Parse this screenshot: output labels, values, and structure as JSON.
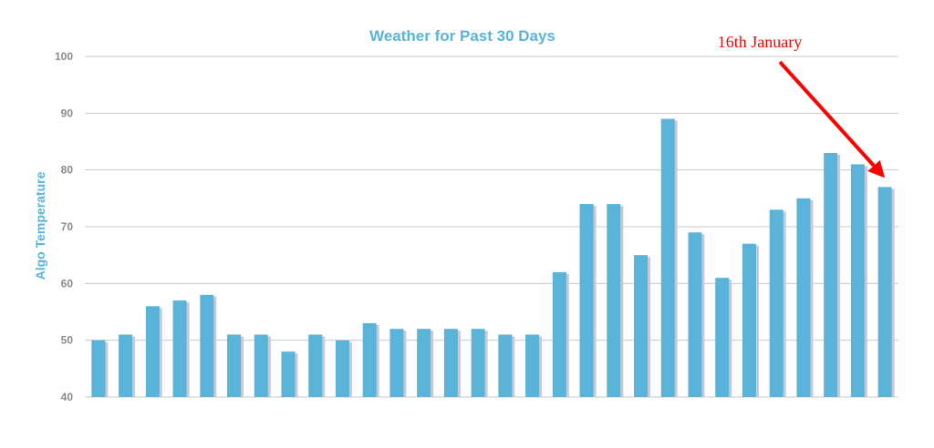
{
  "colors": {
    "bar": "#5ab4d9",
    "bar_shadow": "#c9c9d6",
    "grid": "#c8c8c8",
    "title": "#5ab4d9",
    "annotation": "#ff0000",
    "tick": "#8a8a8a"
  },
  "chart_data": {
    "type": "bar",
    "title": "Weather for Past 30 Days",
    "xlabel": "",
    "ylabel": "Algo Temperature",
    "ylim": [
      40,
      100
    ],
    "yticks": [
      40,
      50,
      60,
      70,
      80,
      90,
      100
    ],
    "grid": true,
    "values": [
      50,
      51,
      56,
      57,
      58,
      51,
      51,
      48,
      51,
      50,
      53,
      52,
      52,
      52,
      52,
      51,
      51,
      62,
      74,
      74,
      65,
      89,
      69,
      61,
      67,
      73,
      75,
      83,
      81,
      77
    ],
    "annotations": [
      {
        "text": "16th January",
        "target_index": 29,
        "color": "#ff0000",
        "arrow": true
      }
    ]
  }
}
